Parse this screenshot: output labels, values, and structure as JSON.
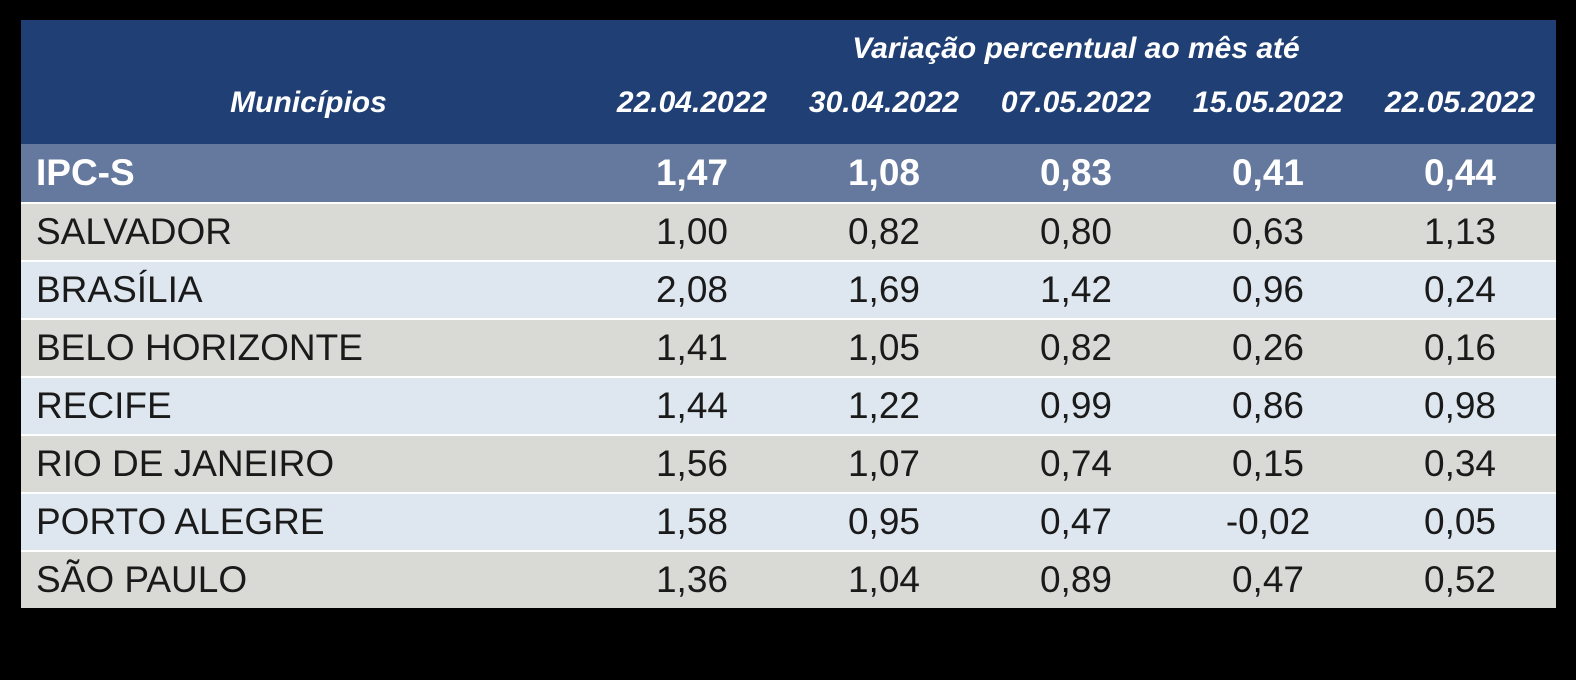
{
  "colors": {
    "background": "#000000",
    "header_bg": "#203F74",
    "header_text": "#FFFFFF",
    "summary_row_bg": "#65789E",
    "summary_row_text": "#FFFFFF",
    "row_alt_gray": "#D9DAD6",
    "row_alt_blue": "#DEE7EF",
    "body_text": "#1A1A1A"
  },
  "table": {
    "group_header": "Variação percentual ao mês até",
    "municipios_header": "Municípios",
    "date_headers": [
      "22.04.2022",
      "30.04.2022",
      "07.05.2022",
      "15.05.2022",
      "22.05.2022"
    ],
    "summary_row": {
      "label": "IPC-S",
      "values": [
        "1,47",
        "1,08",
        "0,83",
        "0,41",
        "0,44"
      ]
    },
    "rows": [
      {
        "label": "SALVADOR",
        "values": [
          "1,00",
          "0,82",
          "0,80",
          "0,63",
          "1,13"
        ]
      },
      {
        "label": "BRASÍLIA",
        "values": [
          "2,08",
          "1,69",
          "1,42",
          "0,96",
          "0,24"
        ]
      },
      {
        "label": "BELO HORIZONTE",
        "values": [
          "1,41",
          "1,05",
          "0,82",
          "0,26",
          "0,16"
        ]
      },
      {
        "label": "RECIFE",
        "values": [
          "1,44",
          "1,22",
          "0,99",
          "0,86",
          "0,98"
        ]
      },
      {
        "label": "RIO DE JANEIRO",
        "values": [
          "1,56",
          "1,07",
          "0,74",
          "0,15",
          "0,34"
        ]
      },
      {
        "label": "PORTO ALEGRE",
        "values": [
          "1,58",
          "0,95",
          "0,47",
          "-0,02",
          "0,05"
        ]
      },
      {
        "label": "SÃO PAULO",
        "values": [
          "1,36",
          "1,04",
          "0,89",
          "0,47",
          "0,52"
        ]
      }
    ]
  },
  "chart_data": {
    "type": "table",
    "title": "Variação percentual ao mês até",
    "columns": [
      "Municípios",
      "22.04.2022",
      "30.04.2022",
      "07.05.2022",
      "15.05.2022",
      "22.05.2022"
    ],
    "rows": [
      [
        "IPC-S",
        "1,47",
        "1,08",
        "0,83",
        "0,41",
        "0,44"
      ],
      [
        "SALVADOR",
        "1,00",
        "0,82",
        "0,80",
        "0,63",
        "1,13"
      ],
      [
        "BRASÍLIA",
        "2,08",
        "1,69",
        "1,42",
        "0,96",
        "0,24"
      ],
      [
        "BELO HORIZONTE",
        "1,41",
        "1,05",
        "0,82",
        "0,26",
        "0,16"
      ],
      [
        "RECIFE",
        "1,44",
        "1,22",
        "0,99",
        "0,86",
        "0,98"
      ],
      [
        "RIO DE JANEIRO",
        "1,56",
        "1,07",
        "0,74",
        "0,15",
        "0,34"
      ],
      [
        "PORTO ALEGRE",
        "1,58",
        "0,95",
        "0,47",
        "-0,02",
        "0,05"
      ],
      [
        "SÃO PAULO",
        "1,36",
        "1,04",
        "0,89",
        "0,47",
        "0,52"
      ]
    ]
  }
}
